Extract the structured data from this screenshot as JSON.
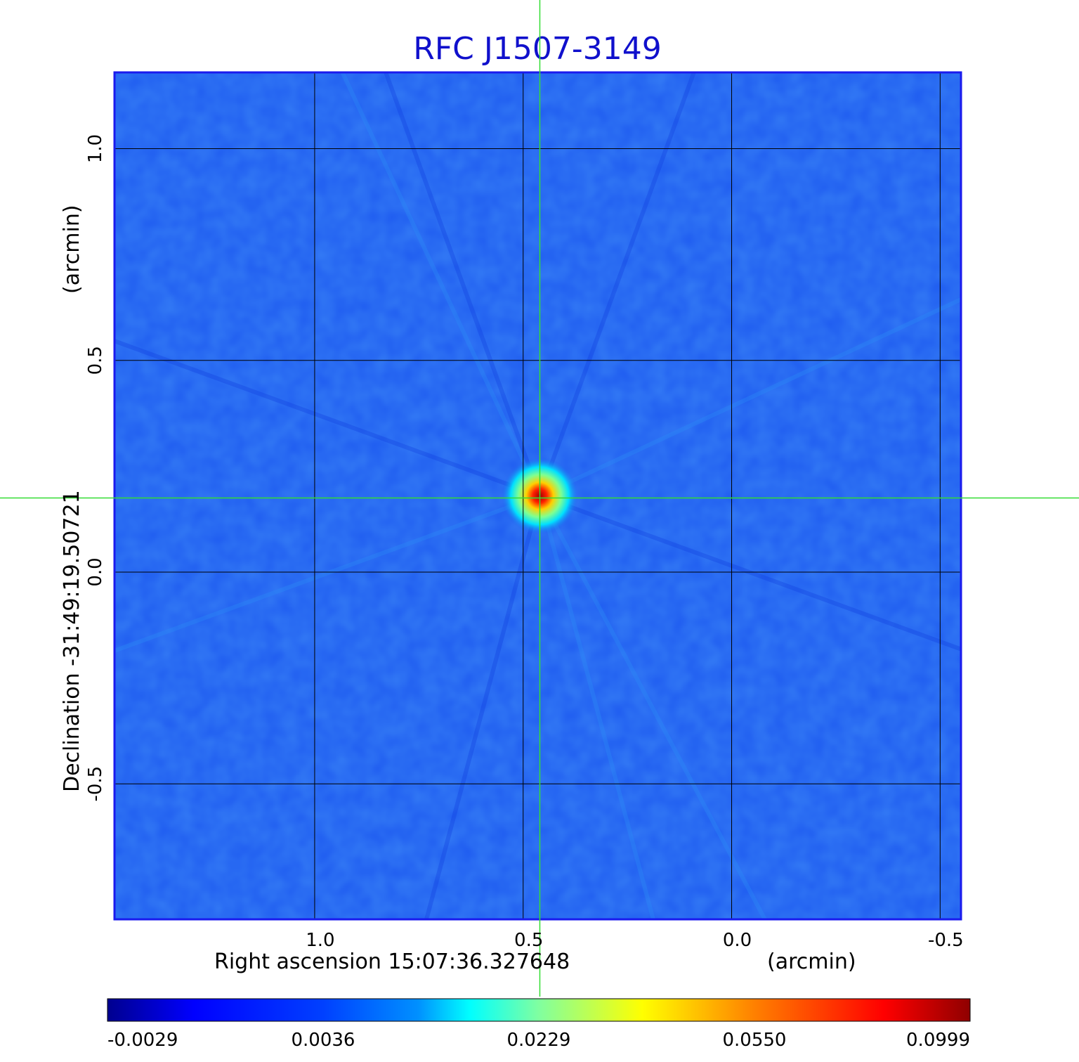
{
  "chart_data": {
    "type": "heatmap",
    "title": "RFC J1507-3149",
    "xlabel": "Right ascension  15:07:36.327648",
    "xunit": "(arcmin)",
    "ylabel": "Declination  -31:49:19.50721",
    "yunit": "(arcmin)",
    "x_ticks": [
      "1.0",
      "0.5",
      "0.0",
      "-0.5"
    ],
    "y_ticks": [
      "1.0",
      "0.5",
      "0.0",
      "-0.5"
    ],
    "x_tick_values": [
      1.0,
      0.5,
      0.0,
      -0.5
    ],
    "y_tick_values": [
      1.0,
      0.5,
      0.0,
      -0.5
    ],
    "xlim": [
      1.48,
      -0.55
    ],
    "ylim": [
      -0.82,
      1.18
    ],
    "grid": true,
    "crosshair": {
      "x": 0.46,
      "y": 0.175,
      "color": "#33dd33"
    },
    "peak": {
      "x": 0.46,
      "y": 0.18,
      "value": 0.0999
    },
    "colorbar": {
      "ticks": [
        "-0.0029",
        "0.0036",
        "0.0229",
        "0.0550",
        "0.0999"
      ],
      "tick_values": [
        -0.0029,
        0.0036,
        0.0229,
        0.055,
        0.0999
      ],
      "colormap": "jet"
    },
    "colors": {
      "frame": "#1a1aee",
      "background_level": "#1f5cf0",
      "grid": "#000000"
    }
  }
}
